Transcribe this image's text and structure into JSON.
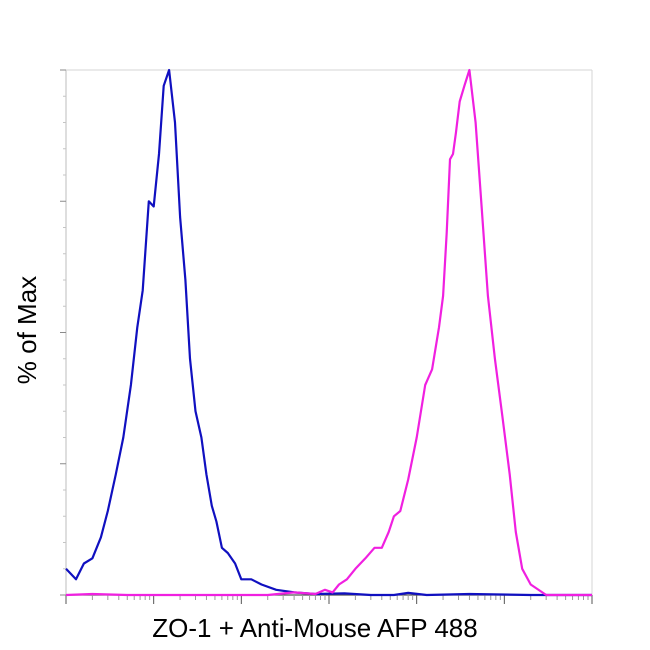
{
  "chart_data": {
    "type": "line",
    "title": "",
    "xlabel": "ZO-1 + Anti-Mouse AFP 488",
    "ylabel": "% of Max",
    "x_scale": "log",
    "xlim": [
      1,
      1000000
    ],
    "ylim": [
      0,
      100
    ],
    "grid": false,
    "legend": "none",
    "series": [
      {
        "color": "#1010c0",
        "x": [
          1.0,
          1.3,
          1.6,
          2.0,
          2.5,
          3.0,
          3.7,
          4.5,
          5.5,
          6.5,
          7.5,
          8.8,
          10,
          11.5,
          13,
          15,
          17.5,
          20,
          23,
          26,
          30,
          35,
          40,
          46,
          52,
          60,
          70,
          85,
          100,
          130,
          170,
          250,
          400,
          700,
          1500,
          3000,
          5500,
          8000,
          13000,
          40000,
          200000,
          1000000
        ],
        "y": [
          5,
          3,
          6,
          7,
          11,
          16,
          23,
          30,
          40,
          51,
          58,
          75,
          74,
          84,
          97,
          100,
          90,
          72,
          60,
          45,
          35,
          30,
          23,
          17,
          14,
          9,
          8,
          6,
          3,
          3,
          2,
          1,
          0.5,
          0.2,
          0.3,
          0,
          0,
          0.4,
          0,
          0.2,
          0,
          0
        ]
      },
      {
        "color": "#f020e0",
        "x": [
          1,
          2,
          5,
          10,
          50,
          200,
          400,
          700,
          900,
          1100,
          1300,
          1600,
          2000,
          2600,
          3300,
          4000,
          4800,
          5500,
          6500,
          8000,
          10000,
          12500,
          15000,
          18000,
          20000,
          22000,
          24000,
          26000,
          28000,
          31000,
          35000,
          40000,
          47000,
          55000,
          65000,
          78000,
          95000,
          115000,
          135000,
          160000,
          200000,
          300000,
          1000000
        ],
        "y": [
          0,
          0.2,
          0,
          0,
          0,
          0,
          0.5,
          0.2,
          1,
          0.5,
          2,
          3,
          5,
          7,
          9,
          9,
          12,
          15,
          16,
          22,
          30,
          40,
          43,
          51,
          57,
          69,
          83,
          84,
          88,
          94,
          97,
          100,
          90,
          74,
          57,
          45,
          34,
          23,
          12,
          5,
          2,
          0,
          0
        ]
      }
    ]
  }
}
